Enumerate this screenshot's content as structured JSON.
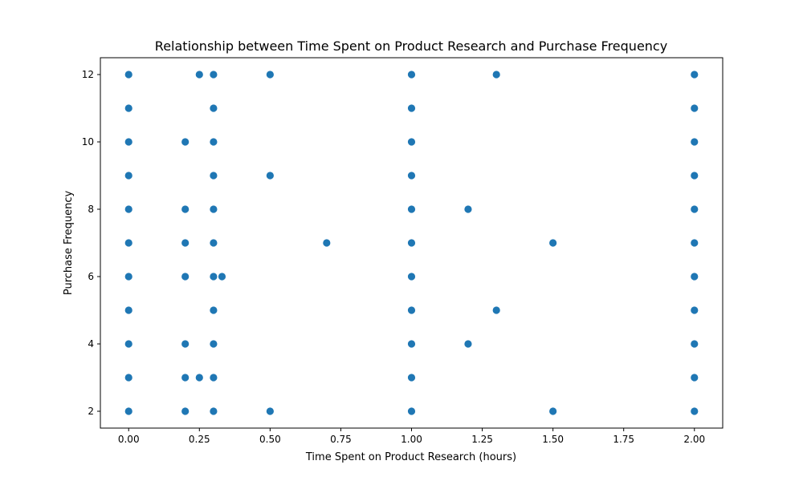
{
  "chart_data": {
    "type": "scatter",
    "title": "Relationship between Time Spent on Product Research and Purchase Frequency",
    "xlabel": "Time Spent on Product Research (hours)",
    "ylabel": "Purchase Frequency",
    "xlim": [
      -0.1,
      2.1
    ],
    "ylim": [
      1.5,
      12.5
    ],
    "xticks": [
      0.0,
      0.25,
      0.5,
      0.75,
      1.0,
      1.25,
      1.5,
      1.75,
      2.0
    ],
    "xtick_labels": [
      "0.00",
      "0.25",
      "0.50",
      "0.75",
      "1.00",
      "1.25",
      "1.50",
      "1.75",
      "2.00"
    ],
    "yticks": [
      2,
      4,
      6,
      8,
      10,
      12
    ],
    "ytick_labels": [
      "2",
      "4",
      "6",
      "8",
      "10",
      "12"
    ],
    "grid": false,
    "marker_color": "#1f77b4",
    "series": [
      {
        "x": [
          0,
          0,
          0,
          0,
          0,
          0,
          0,
          0,
          0,
          0,
          0,
          0.25,
          0.3,
          0.5,
          1.0,
          1.3,
          2.0,
          0.3,
          1.0,
          2.0,
          0.2,
          0.3,
          1.0,
          2.0,
          0.3,
          0.5,
          1.0,
          2.0,
          0.2,
          0.3,
          1.0,
          1.2,
          2.0,
          0.2,
          0.3,
          0.7,
          1.0,
          1.5,
          2.0,
          0.2,
          0.3,
          0.33,
          1.0,
          2.0,
          0.3,
          1.0,
          1.3,
          2.0,
          0.2,
          0.3,
          1.0,
          1.2,
          2.0,
          0.2,
          0.25,
          0.3,
          1.0,
          2.0,
          0.2,
          0.3,
          0.5,
          1.0,
          1.5,
          2.0
        ],
        "y": [
          12,
          11,
          10,
          9,
          8,
          7,
          6,
          5,
          4,
          3,
          2,
          12,
          12,
          12,
          12,
          12,
          12,
          11,
          11,
          11,
          10,
          10,
          10,
          10,
          9,
          9,
          9,
          9,
          8,
          8,
          8,
          8,
          8,
          7,
          7,
          7,
          7,
          7,
          7,
          6,
          6,
          6,
          6,
          6,
          5,
          5,
          5,
          5,
          4,
          4,
          4,
          4,
          4,
          3,
          3,
          3,
          3,
          3,
          2,
          2,
          2,
          2,
          2,
          2
        ]
      }
    ]
  }
}
